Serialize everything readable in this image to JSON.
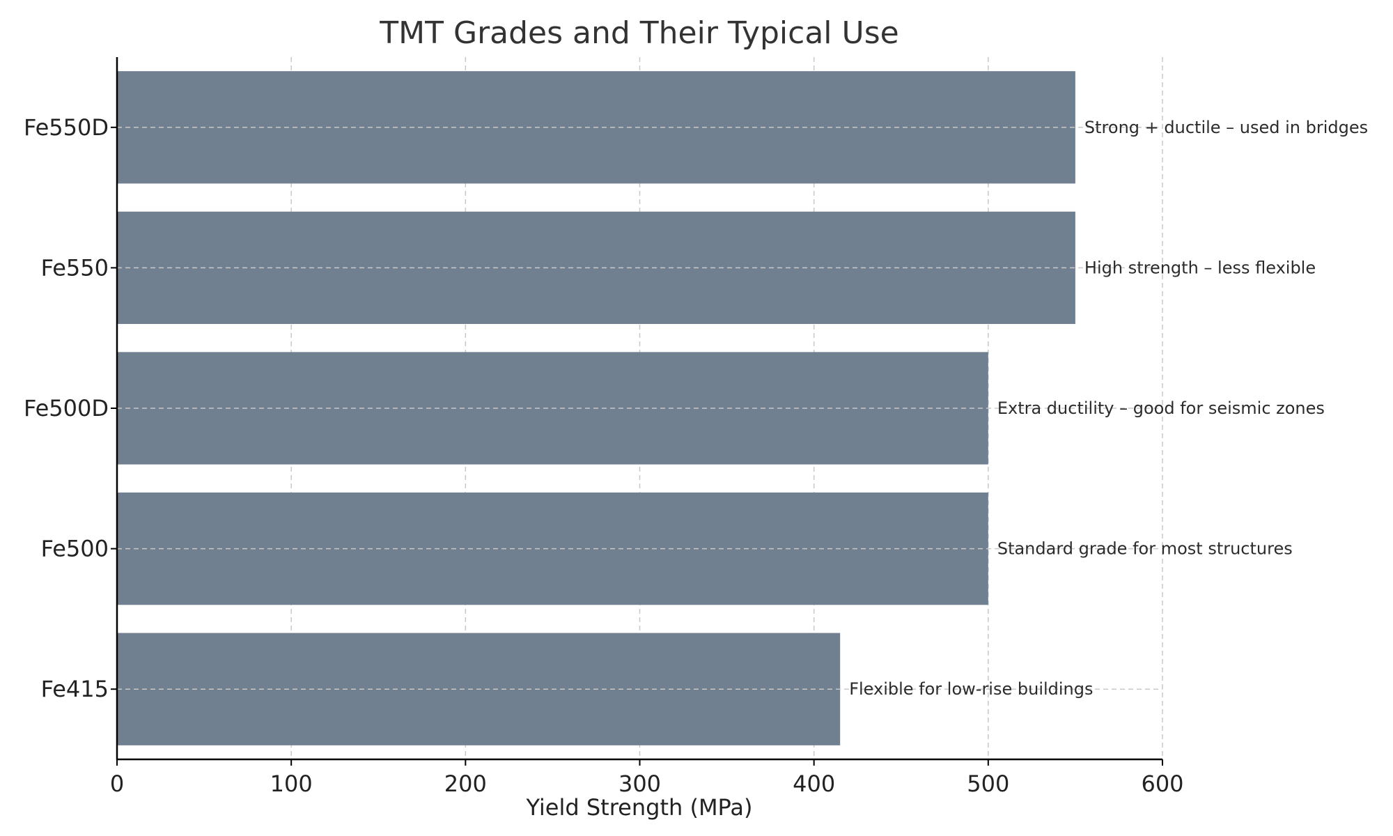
{
  "chart_data": {
    "type": "bar",
    "orientation": "horizontal",
    "title": "TMT Grades and Their Typical Use",
    "xlabel": "Yield Strength (MPa)",
    "ylabel": "",
    "xlim": [
      0,
      600
    ],
    "x_ticks": [
      0,
      100,
      200,
      300,
      400,
      500,
      600
    ],
    "categories": [
      "Fe415",
      "Fe500",
      "Fe500D",
      "Fe550",
      "Fe550D"
    ],
    "values": [
      415,
      500,
      500,
      550,
      550
    ],
    "annotations": [
      "Flexible for low-rise buildings",
      "Standard grade for most structures",
      "Extra ductility – good for seismic zones",
      "High strength – less flexible",
      "Strong + ductile – used in bridges"
    ],
    "bar_color": "#708090",
    "grid": true
  }
}
